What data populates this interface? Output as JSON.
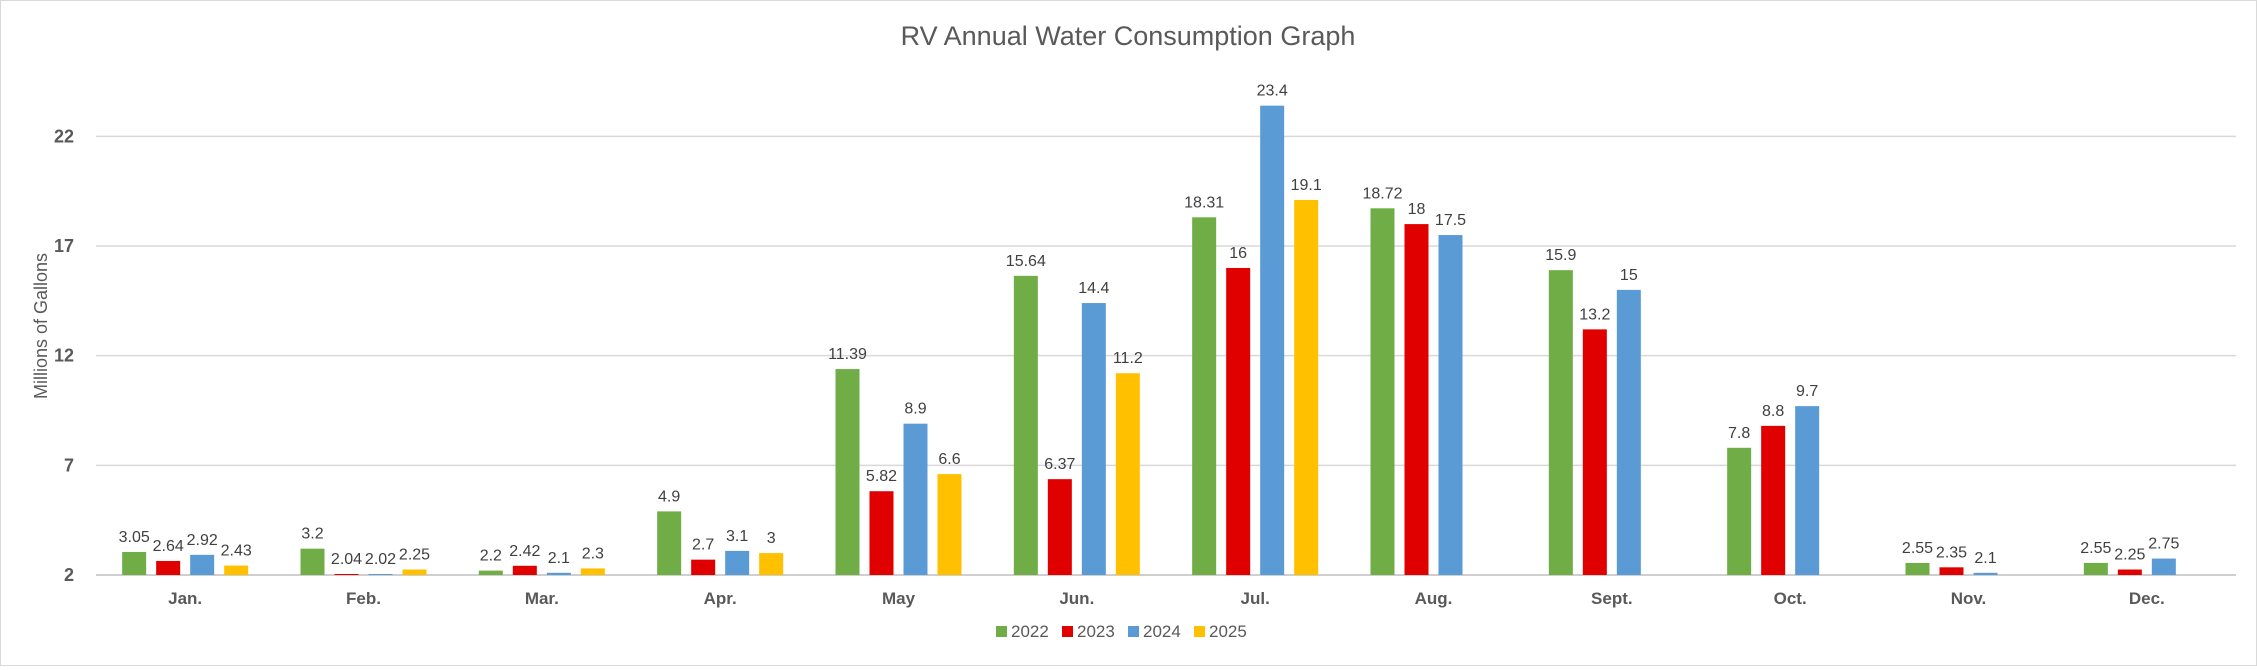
{
  "chart_data": {
    "type": "bar",
    "title": "RV Annual Water Consumption Graph",
    "xlabel": "",
    "ylabel": "Millions of Gallons",
    "ylim": [
      2,
      24
    ],
    "yticks": [
      2,
      7,
      12,
      17,
      22
    ],
    "grid": true,
    "legend_position": "bottom",
    "categories": [
      "Jan.",
      "Feb.",
      "Mar.",
      "Apr.",
      "May",
      "Jun.",
      "Jul.",
      "Aug.",
      "Sept.",
      "Oct.",
      "Nov.",
      "Dec."
    ],
    "series": [
      {
        "name": "2022",
        "color": "#70AD47",
        "values": [
          3.05,
          3.2,
          2.2,
          4.9,
          11.39,
          15.64,
          18.31,
          18.72,
          15.9,
          7.8,
          2.55,
          2.55
        ]
      },
      {
        "name": "2023",
        "color": "#E00000",
        "values": [
          2.64,
          2.04,
          2.42,
          2.7,
          5.82,
          6.37,
          16,
          18,
          13.2,
          8.8,
          2.35,
          2.25
        ]
      },
      {
        "name": "2024",
        "color": "#5B9BD5",
        "values": [
          2.92,
          2.02,
          2.1,
          3.1,
          8.9,
          14.4,
          23.4,
          17.5,
          15,
          9.7,
          2.1,
          2.75
        ]
      },
      {
        "name": "2025",
        "color": "#FFC000",
        "values": [
          2.43,
          2.25,
          2.3,
          3,
          6.6,
          11.2,
          19.1,
          null,
          null,
          null,
          null,
          null
        ]
      }
    ]
  }
}
